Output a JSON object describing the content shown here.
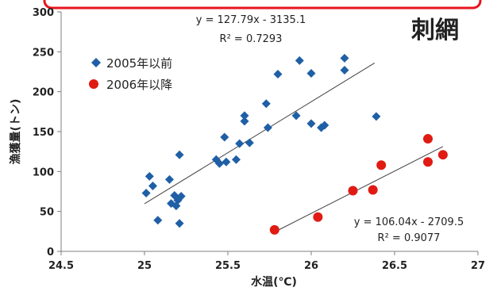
{
  "colors": {
    "frame_border": "#e8141d",
    "axis": "#7f7f7f",
    "series1": "#1f5fa6",
    "series2": "#e01b13",
    "trend": "#404040"
  },
  "chart_data": {
    "type": "scatter",
    "title": "刺網",
    "xlabel": "水温(℃)",
    "ylabel": "漁獲量(トン)",
    "xlim": [
      24.5,
      27
    ],
    "ylim": [
      0,
      300
    ],
    "x_ticks": [
      "24.5",
      "25",
      "25.5",
      "26",
      "26.5",
      "27"
    ],
    "y_ticks": [
      "0",
      "50",
      "100",
      "150",
      "200",
      "250",
      "300"
    ],
    "grid": false,
    "legend_position": "top-left",
    "series": [
      {
        "name": "2005年以前",
        "marker": "diamond",
        "color": "#1f5fa6",
        "points": [
          [
            25.01,
            73
          ],
          [
            25.03,
            94
          ],
          [
            25.05,
            82
          ],
          [
            25.08,
            39
          ],
          [
            25.15,
            90
          ],
          [
            25.16,
            60
          ],
          [
            25.18,
            70
          ],
          [
            25.19,
            57
          ],
          [
            25.2,
            64
          ],
          [
            25.21,
            121
          ],
          [
            25.21,
            35
          ],
          [
            25.22,
            69
          ],
          [
            25.43,
            115
          ],
          [
            25.45,
            110
          ],
          [
            25.48,
            143
          ],
          [
            25.49,
            112
          ],
          [
            25.55,
            115
          ],
          [
            25.57,
            135
          ],
          [
            25.6,
            163
          ],
          [
            25.6,
            170
          ],
          [
            25.63,
            136
          ],
          [
            25.73,
            185
          ],
          [
            25.74,
            155
          ],
          [
            25.8,
            222
          ],
          [
            25.91,
            170
          ],
          [
            25.93,
            239
          ],
          [
            26.0,
            223
          ],
          [
            26.0,
            160
          ],
          [
            26.06,
            155
          ],
          [
            26.08,
            158
          ],
          [
            26.2,
            242
          ],
          [
            26.2,
            227
          ],
          [
            26.39,
            169
          ]
        ],
        "trendline": {
          "slope": 127.79,
          "intercept": -3135.1,
          "x_range": [
            25.0,
            26.38
          ],
          "equation": "y = 127.79x - 3135.1",
          "r2": "R² = 0.7293"
        }
      },
      {
        "name": "2006年以降",
        "marker": "circle",
        "color": "#e01b13",
        "points": [
          [
            25.78,
            27
          ],
          [
            26.04,
            43
          ],
          [
            26.25,
            76
          ],
          [
            26.37,
            77
          ],
          [
            26.42,
            108
          ],
          [
            26.7,
            141
          ],
          [
            26.7,
            112
          ],
          [
            26.79,
            121
          ]
        ],
        "trendline": {
          "slope": 106.04,
          "intercept": -2709.5,
          "x_range": [
            25.78,
            26.79
          ],
          "equation": "y = 106.04x - 2709.5",
          "r2": "R² = 0.9077"
        }
      }
    ]
  }
}
